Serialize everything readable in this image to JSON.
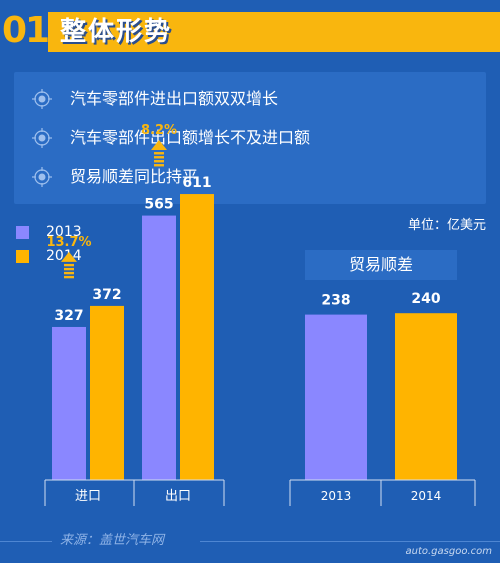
{
  "header": {
    "number": "01",
    "title": "整体形势"
  },
  "points": [
    "汽车零部件进出口额双双增长",
    "汽车零部件出口额增长不及进口额",
    "贸易顺差同比持平"
  ],
  "unit": "单位：亿美元",
  "legend": [
    "2013",
    "2014"
  ],
  "colors": {
    "s2013": "#8a87ff",
    "s2014": "#ffb400",
    "growth": "#f9b60e",
    "bg": "#1f5eb4",
    "panel": "#2b6cc4"
  },
  "source": "来源：盖世汽车网",
  "watermark": "auto.gasgoo.com",
  "chart_data": [
    {
      "type": "bar",
      "categories": [
        "进口",
        "出口"
      ],
      "series": [
        {
          "name": "2013",
          "values": [
            327,
            565
          ]
        },
        {
          "name": "2014",
          "values": [
            372,
            611
          ]
        }
      ],
      "growth": [
        "13.7%",
        "8.2%"
      ],
      "ylim": [
        0,
        700
      ]
    },
    {
      "type": "bar",
      "title": "贸易顺差",
      "categories": [
        "2013",
        "2014"
      ],
      "values": [
        238,
        240
      ],
      "ylim": [
        0,
        280
      ]
    }
  ]
}
